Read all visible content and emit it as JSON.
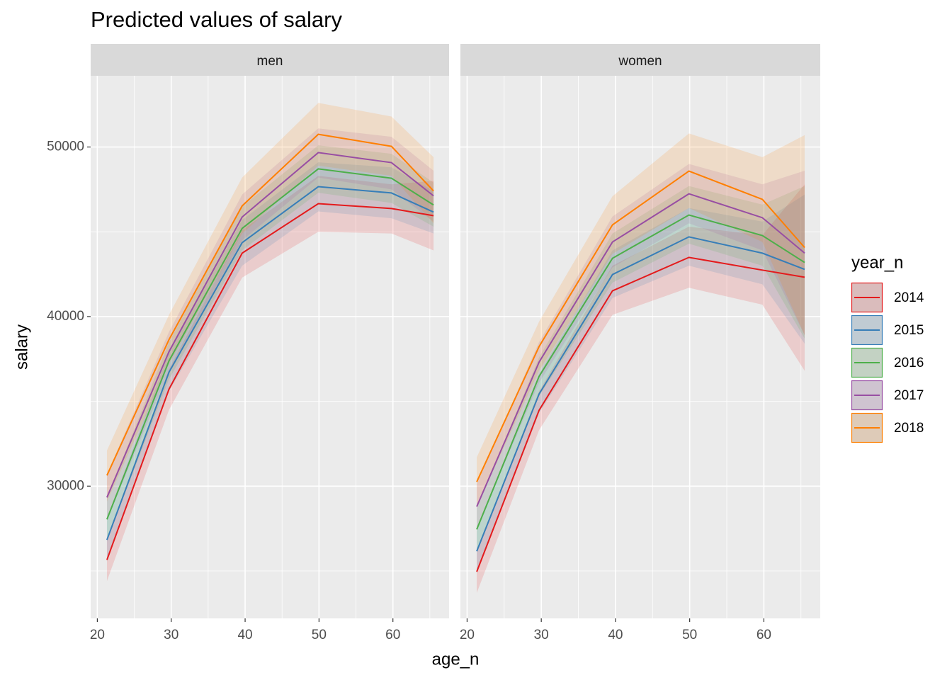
{
  "chart_data": {
    "type": "line",
    "title": "Predicted values of salary",
    "x_label": "age_n",
    "y_label": "salary",
    "legend_title": "year_n",
    "x": [
      21.3,
      29.7,
      39.6,
      49.9,
      59.8,
      65.5
    ],
    "xlim": [
      19.1,
      67.6
    ],
    "xticks": [
      20,
      30,
      40,
      50,
      60
    ],
    "minor_xticks": [
      25,
      35,
      45,
      55,
      65
    ],
    "ylim": [
      22200,
      54200
    ],
    "yticks": [
      30000,
      40000,
      50000
    ],
    "minor_yticks": [
      25000,
      35000,
      45000
    ],
    "grid": true,
    "series": [
      {
        "name": "2014",
        "color": "#E41A1C"
      },
      {
        "name": "2015",
        "color": "#377EB8"
      },
      {
        "name": "2016",
        "color": "#4DAF4A"
      },
      {
        "name": "2017",
        "color": "#984EA3"
      },
      {
        "name": "2018",
        "color": "#FF7F00"
      }
    ],
    "facets": [
      {
        "title": "men",
        "series": [
          {
            "values": [
              25650,
              35720,
              43740,
              46660,
              46370,
              45950
            ],
            "lower": [
              24400,
              34500,
              42300,
              45000,
              44900,
              43900
            ],
            "upper": [
              26900,
              36900,
              45100,
              48300,
              47800,
              48000
            ]
          },
          {
            "values": [
              26830,
              36720,
              44360,
              47660,
              47290,
              46160
            ],
            "lower": [
              25600,
              35600,
              43000,
              46200,
              45800,
              44900
            ],
            "upper": [
              28100,
              37900,
              45700,
              49100,
              48800,
              47400
            ]
          },
          {
            "values": [
              28040,
              37390,
              45200,
              48710,
              48160,
              46580
            ],
            "lower": [
              26800,
              36300,
              43900,
              47300,
              46700,
              45300
            ],
            "upper": [
              29300,
              38500,
              46500,
              50100,
              49600,
              47900
            ]
          },
          {
            "values": [
              29330,
              37930,
              45870,
              49670,
              49080,
              47120
            ],
            "lower": [
              28000,
              36800,
              44500,
              48200,
              47500,
              45600
            ],
            "upper": [
              30700,
              39100,
              47200,
              51100,
              50600,
              48600
            ]
          },
          {
            "values": [
              30630,
              38640,
              46530,
              50750,
              50040,
              47410
            ],
            "lower": [
              29100,
              37200,
              44900,
              48900,
              48300,
              45500
            ],
            "upper": [
              32100,
              40100,
              48200,
              52600,
              51800,
              49400
            ]
          }
        ]
      },
      {
        "title": "women",
        "series": [
          {
            "values": [
              24950,
              34470,
              41520,
              43490,
              42740,
              42320
            ],
            "lower": [
              23700,
              33300,
              40100,
              41700,
              40700,
              36800
            ],
            "upper": [
              26200,
              35600,
              43000,
              45300,
              44800,
              47800
            ]
          },
          {
            "values": [
              26160,
              35430,
              42480,
              44700,
              43740,
              42780
            ],
            "lower": [
              24900,
              34300,
              41100,
              43000,
              41900,
              38400
            ],
            "upper": [
              27400,
              36600,
              43900,
              46400,
              45600,
              47200
            ]
          },
          {
            "values": [
              27450,
              36470,
              43440,
              45990,
              44780,
              43190
            ],
            "lower": [
              26200,
              35300,
              42000,
              44300,
              43000,
              38700
            ],
            "upper": [
              28700,
              37600,
              44900,
              47700,
              46600,
              47700
            ]
          },
          {
            "values": [
              28790,
              37310,
              44400,
              47240,
              45830,
              43740
            ],
            "lower": [
              27500,
              36100,
              42900,
              45500,
              43900,
              38900
            ],
            "upper": [
              30100,
              38500,
              45900,
              49000,
              47800,
              48600
            ]
          },
          {
            "values": [
              30250,
              38230,
              45410,
              48580,
              46910,
              44070
            ],
            "lower": [
              28800,
              36800,
              43700,
              46400,
              44400,
              38900
            ],
            "upper": [
              31700,
              39700,
              47100,
              50800,
              49400,
              50700
            ]
          }
        ]
      }
    ]
  }
}
